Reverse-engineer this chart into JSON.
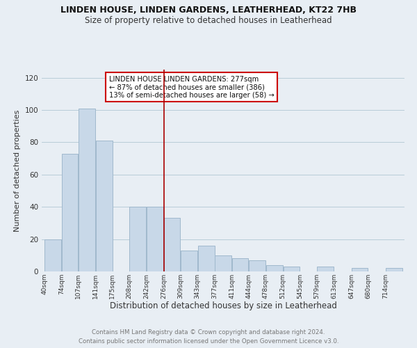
{
  "title": "LINDEN HOUSE, LINDEN GARDENS, LEATHERHEAD, KT22 7HB",
  "subtitle": "Size of property relative to detached houses in Leatherhead",
  "xlabel": "Distribution of detached houses by size in Leatherhead",
  "ylabel": "Number of detached properties",
  "footer_line1": "Contains HM Land Registry data © Crown copyright and database right 2024.",
  "footer_line2": "Contains public sector information licensed under the Open Government Licence v3.0.",
  "bar_edges": [
    40,
    74,
    107,
    141,
    175,
    208,
    242,
    276,
    309,
    343,
    377,
    411,
    444,
    478,
    512,
    545,
    579,
    613,
    647,
    680,
    714
  ],
  "bar_heights": [
    20,
    73,
    101,
    81,
    0,
    40,
    40,
    33,
    13,
    16,
    10,
    8,
    7,
    4,
    3,
    0,
    3,
    0,
    2,
    0,
    2
  ],
  "bar_color": "#c8d8e8",
  "bar_edge_color": "#a0b8cc",
  "vline_x": 277,
  "vline_color": "#aa0000",
  "ylim": [
    0,
    125
  ],
  "yticks": [
    0,
    20,
    40,
    60,
    80,
    100,
    120
  ],
  "annotation_title": "LINDEN HOUSE LINDEN GARDENS: 277sqm",
  "annotation_line1": "← 87% of detached houses are smaller (386)",
  "annotation_line2": "13% of semi-detached houses are larger (58) →",
  "annotation_box_color": "#ffffff",
  "annotation_box_edge": "#cc0000",
  "tick_labels": [
    "40sqm",
    "74sqm",
    "107sqm",
    "141sqm",
    "175sqm",
    "208sqm",
    "242sqm",
    "276sqm",
    "309sqm",
    "343sqm",
    "377sqm",
    "411sqm",
    "444sqm",
    "478sqm",
    "512sqm",
    "545sqm",
    "579sqm",
    "613sqm",
    "647sqm",
    "680sqm",
    "714sqm"
  ],
  "background_color": "#e8eef4"
}
